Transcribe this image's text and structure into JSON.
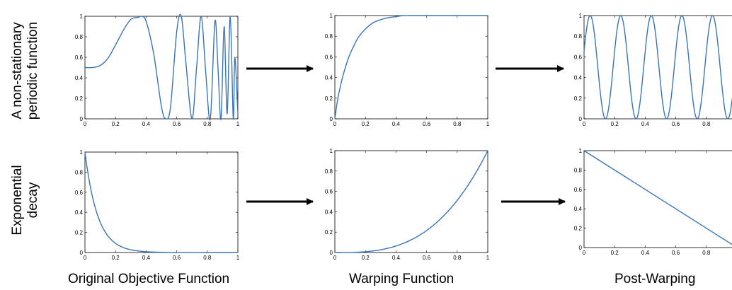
{
  "row_labels": {
    "top": [
      "A non-stationary",
      "periodic function"
    ],
    "bottom": [
      "Exponential",
      "decay"
    ]
  },
  "column_labels": [
    "Original Objective Function",
    "Warping Function",
    "Post-Warping"
  ],
  "colors": {
    "line": "#3875b6",
    "arrow": "#000000",
    "axes": "#000000"
  },
  "chart_data": [
    {
      "type": "line",
      "position": "top-left",
      "x_ticks": [
        "0",
        "0.2",
        "0.4",
        "0.6",
        "0.8",
        "1"
      ],
      "y_ticks": [
        "0",
        "0.2",
        "0.4",
        "0.6",
        "0.8",
        "1"
      ],
      "xlim": [
        0,
        1
      ],
      "ylim": [
        0,
        1
      ],
      "x": [
        0,
        0.05,
        0.1,
        0.15,
        0.2,
        0.25,
        0.3,
        0.35,
        0.37,
        0.4,
        0.45,
        0.5,
        0.53,
        0.56,
        0.6,
        0.63,
        0.66,
        0.7,
        0.73,
        0.76,
        0.79,
        0.82,
        0.85,
        0.87,
        0.89,
        0.91,
        0.93,
        0.95,
        0.97,
        0.98,
        1.0
      ],
      "values": [
        0.5,
        0.5,
        0.52,
        0.59,
        0.72,
        0.86,
        0.97,
        0.99,
        1.0,
        0.95,
        0.63,
        0.12,
        0.0,
        0.12,
        0.85,
        1.0,
        0.55,
        0.0,
        0.5,
        1.0,
        0.45,
        0.0,
        0.95,
        0.5,
        0.0,
        0.9,
        0.05,
        1.0,
        0.0,
        0.6,
        0.05
      ]
    },
    {
      "type": "line",
      "position": "top-middle",
      "x_ticks": [
        "0",
        "0.2",
        "0.4",
        "0.6",
        "0.8",
        "1"
      ],
      "y_ticks": [
        "0",
        "0.2",
        "0.4",
        "0.6",
        "0.8",
        "1"
      ],
      "xlim": [
        0,
        1
      ],
      "ylim": [
        0,
        1
      ],
      "x": [
        0,
        0.02,
        0.05,
        0.08,
        0.1,
        0.15,
        0.2,
        0.25,
        0.3,
        0.35,
        0.4,
        0.45,
        0.5,
        0.6,
        0.7,
        0.8,
        0.9,
        1.0
      ],
      "values": [
        0,
        0.2,
        0.4,
        0.55,
        0.63,
        0.78,
        0.87,
        0.93,
        0.96,
        0.98,
        0.99,
        1.0,
        1.0,
        1.0,
        1.0,
        1.0,
        1.0,
        1.0
      ]
    },
    {
      "type": "line",
      "position": "top-right",
      "x_ticks": [
        "0",
        "0.2",
        "0.4",
        "0.6",
        "0.8"
      ],
      "y_ticks": [
        "0",
        "0.2",
        "0.4",
        "0.6",
        "0.8",
        "1"
      ],
      "xlim": [
        0,
        1
      ],
      "ylim": [
        0,
        1
      ],
      "frequency_cycles": 5,
      "phase": 0.5
    },
    {
      "type": "line",
      "position": "bottom-left",
      "x_ticks": [
        "0",
        "0.2",
        "0.4",
        "0.6",
        "0.8",
        "1"
      ],
      "y_ticks": [
        "0",
        "0.2",
        "0.4",
        "0.6",
        "0.8",
        "1"
      ],
      "xlim": [
        0,
        1
      ],
      "ylim": [
        0,
        1
      ],
      "decay_rate": 12
    },
    {
      "type": "line",
      "position": "bottom-middle",
      "x_ticks": [
        "0",
        "0.2",
        "0.4",
        "0.6",
        "0.8",
        "1"
      ],
      "y_ticks": [
        "0",
        "0.2",
        "0.4",
        "0.6",
        "0.8",
        "1"
      ],
      "xlim": [
        0,
        1
      ],
      "ylim": [
        0,
        1
      ],
      "exponent": 3
    },
    {
      "type": "line",
      "position": "bottom-right",
      "x_ticks": [
        "0",
        "0.2",
        "0.4",
        "0.6",
        "0.8"
      ],
      "y_ticks": [
        "0",
        "0.2",
        "0.4",
        "0.6",
        "0.8",
        "1"
      ],
      "xlim": [
        0,
        1
      ],
      "ylim": [
        0,
        1
      ],
      "x": [
        0,
        1
      ],
      "values": [
        1,
        0
      ]
    }
  ]
}
